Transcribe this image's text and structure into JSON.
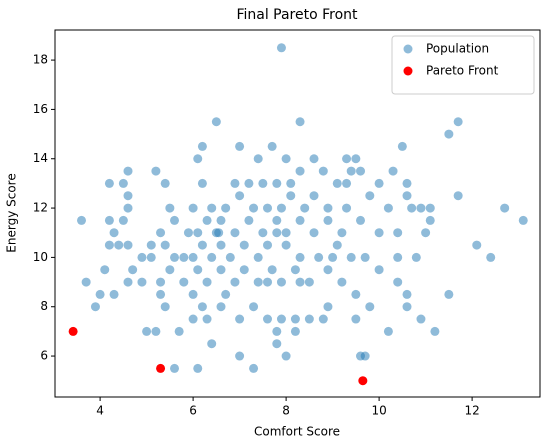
{
  "chart_data": {
    "type": "scatter",
    "title": "Final Pareto Front",
    "x_label": "Comfort Score",
    "y_label": "Energy Score",
    "xlim": [
      3.03,
      13.46
    ],
    "ylim": [
      4.34,
      19.22
    ],
    "xticks": [
      4,
      6,
      8,
      10,
      12
    ],
    "yticks": [
      6,
      8,
      10,
      12,
      14,
      16,
      18
    ],
    "grid": false,
    "legend": "upper right",
    "series": [
      {
        "name": "Population",
        "color": "#1f77b4",
        "alpha": 0.5,
        "x": [
          7.9,
          6.5,
          8.3,
          11.7,
          11.5,
          7.7,
          7.0,
          6.2,
          9.5,
          9.4,
          9.3,
          10.5,
          8.6,
          6.1,
          7.4,
          8.0,
          4.6,
          4.5,
          4.2,
          4.6,
          5.2,
          5.4,
          6.2,
          6.9,
          7.2,
          7.5,
          7.8,
          8.1,
          8.3,
          8.8,
          9.1,
          9.3,
          9.6,
          10.0,
          10.3,
          10.6,
          8.1,
          11.7,
          12.7,
          13.1,
          10.6,
          10.7,
          10.9,
          11.1,
          11.1,
          10.2,
          9.8,
          9.3,
          8.9,
          8.6,
          8.4,
          7.9,
          7.6,
          7.3,
          7.0,
          6.7,
          6.4,
          6.0,
          5.5,
          4.6,
          4.5,
          4.2,
          3.6,
          4.3,
          4.2,
          4.6,
          5.1,
          5.3,
          5.6,
          5.9,
          6.1,
          6.3,
          6.6,
          6.9,
          7.2,
          7.5,
          7.8,
          8.0,
          8.3,
          8.6,
          8.9,
          9.2,
          9.6,
          10.0,
          10.4,
          11.0,
          12.1,
          12.4,
          10.8,
          10.4,
          10.0,
          9.7,
          9.4,
          9.1,
          8.7,
          8.3,
          8.0,
          7.8,
          7.6,
          7.4,
          7.1,
          6.8,
          6.6,
          6.4,
          6.2,
          6.0,
          5.8,
          5.6,
          5.4,
          5.1,
          4.9,
          4.7,
          4.4,
          4.1,
          3.7,
          4.0,
          3.9,
          4.3,
          4.6,
          4.9,
          5.3,
          5.5,
          5.8,
          6.1,
          6.3,
          6.6,
          6.9,
          7.1,
          7.4,
          7.7,
          7.9,
          8.2,
          8.5,
          8.9,
          9.2,
          9.5,
          9.8,
          10.4,
          10.6,
          10.6,
          11.5,
          10.9,
          10.2,
          11.2,
          9.5,
          8.8,
          8.5,
          8.2,
          7.9,
          7.6,
          7.3,
          7.0,
          6.6,
          6.3,
          6.0,
          6.2,
          6.0,
          5.7,
          5.2,
          5.0,
          5.4,
          5.3,
          6.4,
          7.0,
          7.3,
          7.8,
          8.0,
          8.2,
          9.6,
          9.7,
          6.1,
          5.6,
          7.8,
          8.3,
          9.0,
          6.5,
          6.55,
          8.9,
          7.6,
          6.7
        ],
        "y": [
          18.5,
          15.5,
          15.5,
          15.5,
          15,
          14.5,
          14.5,
          14.5,
          14,
          13.5,
          14,
          14.5,
          14,
          14,
          14,
          14,
          13.5,
          13,
          13,
          12.5,
          13.5,
          13,
          13,
          13,
          13,
          13,
          13,
          13,
          13.5,
          13.5,
          13,
          13,
          13.5,
          13,
          13.5,
          13,
          12.5,
          12.5,
          12,
          11.5,
          12.5,
          12,
          12,
          12,
          11.5,
          12,
          12.5,
          12,
          12,
          12.5,
          12,
          12,
          12,
          12,
          12.5,
          12,
          12,
          12,
          12,
          12,
          11.5,
          11.5,
          11.5,
          11,
          10.5,
          10.5,
          10.5,
          11,
          11.5,
          11,
          11,
          11.5,
          11.5,
          11,
          11.5,
          11,
          11.5,
          11,
          11.5,
          11,
          11.5,
          11,
          11.5,
          11,
          11,
          11,
          10.5,
          10,
          10,
          10,
          9.5,
          10,
          10,
          10.5,
          10,
          10,
          10.5,
          11,
          10.5,
          10,
          10.5,
          10,
          10.5,
          10,
          10.5,
          10,
          10,
          10,
          10.5,
          10,
          10,
          9.5,
          10.5,
          9.5,
          9,
          8.5,
          8,
          8.5,
          9,
          9,
          9,
          9.5,
          9,
          9.5,
          9,
          9.5,
          9,
          9.5,
          9,
          9.5,
          9,
          9.5,
          9,
          9.5,
          9,
          8.5,
          8,
          9,
          8.5,
          8,
          8.5,
          7.5,
          7.0,
          7.0,
          7.5,
          7.5,
          7.5,
          7.5,
          7.5,
          7.5,
          8,
          7.5,
          8,
          7.5,
          8.5,
          8,
          7.5,
          7,
          7.0,
          7.0,
          8,
          8.5,
          6.5,
          6.0,
          5.5,
          6.5,
          6.0,
          7.0,
          6.0,
          6.0,
          5.5,
          5.5,
          7.0,
          9.0,
          10.0,
          11.0,
          11.0,
          8.0,
          9.0,
          8.5
        ]
      },
      {
        "name": "Pareto Front",
        "color": "#ff0000",
        "alpha": 1,
        "x": [
          3.42,
          5.3,
          9.65
        ],
        "y": [
          7.0,
          5.5,
          5.0
        ]
      }
    ]
  }
}
